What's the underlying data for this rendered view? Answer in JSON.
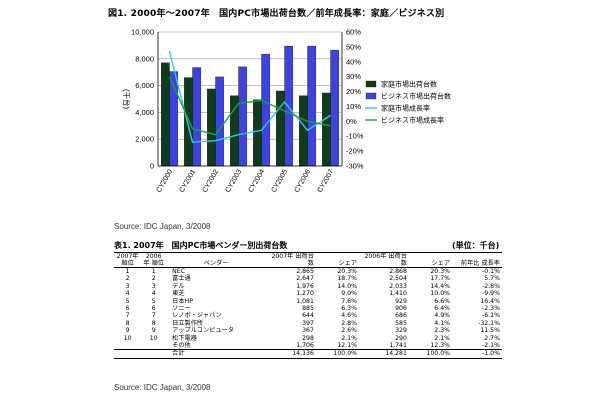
{
  "figure": {
    "title": "図1. 2000年～2007年　国内PC市場出荷台数／前年成長率：家庭／ビジネス別"
  },
  "chart_data": {
    "type": "bar",
    "title": "図1. 2000年～2007年　国内PC市場出荷台数／前年成長率：家庭／ビジネス別",
    "categories": [
      "CY2000",
      "CY2001",
      "CY2002",
      "CY2003",
      "CY2004",
      "CY2005",
      "CY2006",
      "CY2007"
    ],
    "ylabel": "(千台)",
    "ylim": [
      0,
      10000
    ],
    "yticks": [
      "0",
      "2,000",
      "4,000",
      "6,000",
      "8,000",
      "10,000"
    ],
    "y2lim": [
      -30,
      60
    ],
    "y2ticks": [
      "-30%",
      "-20%",
      "-10%",
      "0%",
      "10%",
      "20%",
      "30%",
      "40%",
      "50%",
      "60%"
    ],
    "grid": "horizontal",
    "legend_position": "right",
    "series": [
      {
        "name": "家庭市場出荷台数",
        "kind": "bar",
        "axis": "left",
        "color": "#0f3d1c",
        "values": [
          7700,
          6600,
          5750,
          5250,
          4950,
          5600,
          5250,
          5450
        ]
      },
      {
        "name": "ビジネス市場出荷台数",
        "kind": "bar",
        "axis": "left",
        "color": "#3d43e0",
        "values": [
          7050,
          7350,
          6650,
          7400,
          8350,
          8950,
          8950,
          8650
        ]
      },
      {
        "name": "家庭市場成長率",
        "kind": "line",
        "axis": "right",
        "color": "#33c8e8",
        "values": [
          47,
          -14,
          -13,
          -9,
          -6,
          13,
          -6,
          4
        ]
      },
      {
        "name": "ビジネス市場成長率",
        "kind": "line",
        "axis": "right",
        "color": "#1a9e4a",
        "values": [
          30,
          -5,
          -9,
          12,
          14,
          7,
          0,
          -3
        ]
      }
    ]
  },
  "sources": {
    "chart": "Source: IDC Japan, 3/2008",
    "table": "Source: IDC Japan, 3/2008"
  },
  "table": {
    "title": "表1. 2007年　国内PC市場ベンダー別出荷台数",
    "unit": "(単位：千台)",
    "headers": {
      "rank2007": "2007年 順位",
      "rank2006": "2006年 順位",
      "vendor": "ベンダー",
      "units2007": "2007年 出荷台数",
      "share2007": "シェア",
      "units2006": "2006年 出荷台数",
      "share2006": "シェア",
      "growth": "前年比 成長率"
    },
    "rows": [
      [
        "1",
        "1",
        "NEC",
        "2,865",
        "20.3%",
        "2,868",
        "20.3%",
        "-0.1%"
      ],
      [
        "2",
        "2",
        "富士通",
        "2,647",
        "18.7%",
        "2,504",
        "17.7%",
        "5.7%"
      ],
      [
        "3",
        "3",
        "デル",
        "1,976",
        "14.0%",
        "2,033",
        "14.4%",
        "-2.8%"
      ],
      [
        "4",
        "4",
        "東芝",
        "1,270",
        "9.0%",
        "1,410",
        "10.0%",
        "-9.9%"
      ],
      [
        "5",
        "5",
        "日本HP",
        "1,081",
        "7.6%",
        "929",
        "6.6%",
        "16.4%"
      ],
      [
        "6",
        "6",
        "ソニー",
        "885",
        "6.3%",
        "906",
        "6.4%",
        "-2.3%"
      ],
      [
        "7",
        "7",
        "レノボ・ジャパン",
        "644",
        "4.6%",
        "686",
        "4.9%",
        "-6.1%"
      ],
      [
        "8",
        "8",
        "日立製作所",
        "397",
        "2.8%",
        "585",
        "4.1%",
        "-32.1%"
      ],
      [
        "9",
        "9",
        "アップルコンピュータ",
        "367",
        "2.6%",
        "329",
        "2.3%",
        "11.5%"
      ],
      [
        "10",
        "10",
        "松下電器",
        "298",
        "2.1%",
        "290",
        "2.1%",
        "2.7%"
      ],
      [
        "",
        "",
        "その他",
        "1,706",
        "12.1%",
        "1,741",
        "12.3%",
        "-2.1%"
      ]
    ],
    "total": [
      "",
      "",
      "合計",
      "14,136",
      "100.0%",
      "14,281",
      "100.0%",
      "-1.0%"
    ]
  }
}
